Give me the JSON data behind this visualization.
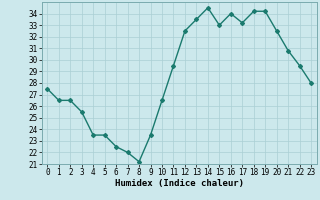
{
  "x": [
    0,
    1,
    2,
    3,
    4,
    5,
    6,
    7,
    8,
    9,
    10,
    11,
    12,
    13,
    14,
    15,
    16,
    17,
    18,
    19,
    20,
    21,
    22,
    23
  ],
  "y": [
    27.5,
    26.5,
    26.5,
    25.5,
    23.5,
    23.5,
    22.5,
    22.0,
    21.2,
    23.5,
    26.5,
    29.5,
    32.5,
    33.5,
    34.5,
    33.0,
    34.0,
    33.2,
    34.2,
    34.2,
    32.5,
    30.8,
    29.5,
    28.0
  ],
  "line_color": "#1a7a6e",
  "marker": "D",
  "marker_size": 2,
  "bg_color": "#cce8ec",
  "grid_color": "#aacfd4",
  "xlabel": "Humidex (Indice chaleur)",
  "xlim": [
    -0.5,
    23.5
  ],
  "ylim": [
    21,
    35
  ],
  "yticks": [
    21,
    22,
    23,
    24,
    25,
    26,
    27,
    28,
    29,
    30,
    31,
    32,
    33,
    34
  ],
  "xticks": [
    0,
    1,
    2,
    3,
    4,
    5,
    6,
    7,
    8,
    9,
    10,
    11,
    12,
    13,
    14,
    15,
    16,
    17,
    18,
    19,
    20,
    21,
    22,
    23
  ],
  "tick_fontsize": 5.5,
  "xlabel_fontsize": 6.5,
  "line_width": 1.0
}
